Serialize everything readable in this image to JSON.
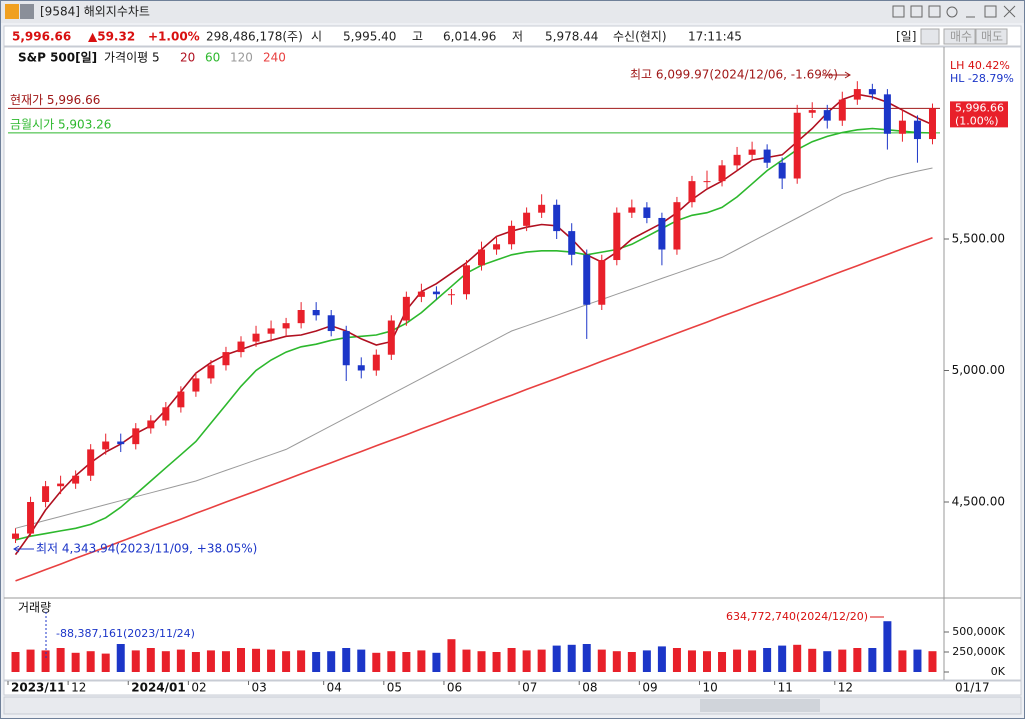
{
  "window": {
    "title": "[9584] 해외지수차트"
  },
  "quote": {
    "price": "5,996.66",
    "change": "▲59.32",
    "change_pct": "+1.00%",
    "volume": "298,486,178(주)",
    "open_label": "시",
    "open": "5,995.40",
    "high_label": "고",
    "high": "6,014.96",
    "low_label": "저",
    "low": "5,978.44",
    "source": "수신(현지)",
    "time": "17:11:45",
    "period": "[일]",
    "buy": "매수",
    "sell": "매도"
  },
  "chart_data": [
    {
      "type": "candlestick",
      "title": "S&P 500[일]",
      "ma_label": "가격이평 5",
      "up_color": "#e8202a",
      "down_color": "#1c36c8",
      "categories": [
        "2023/11",
        null,
        null,
        null,
        "12",
        null,
        null,
        null,
        "2024/01",
        null,
        null,
        null,
        "02",
        null,
        null,
        null,
        "03",
        null,
        null,
        null,
        null,
        "04",
        null,
        null,
        null,
        "05",
        null,
        null,
        null,
        "06",
        null,
        null,
        null,
        null,
        "07",
        null,
        null,
        null,
        "08",
        null,
        null,
        null,
        "09",
        null,
        null,
        null,
        "10",
        null,
        null,
        null,
        null,
        "11",
        null,
        null,
        null,
        "12",
        null,
        null,
        null,
        null,
        null,
        null
      ],
      "candles": [
        [
          4360,
          4400,
          4344,
          4380
        ],
        [
          4380,
          4520,
          4370,
          4500
        ],
        [
          4500,
          4580,
          4480,
          4560
        ],
        [
          4560,
          4600,
          4530,
          4570
        ],
        [
          4570,
          4620,
          4550,
          4600
        ],
        [
          4600,
          4720,
          4580,
          4700
        ],
        [
          4700,
          4760,
          4680,
          4730
        ],
        [
          4730,
          4760,
          4690,
          4720
        ],
        [
          4720,
          4800,
          4700,
          4780
        ],
        [
          4780,
          4830,
          4760,
          4810
        ],
        [
          4810,
          4880,
          4790,
          4860
        ],
        [
          4860,
          4940,
          4840,
          4920
        ],
        [
          4920,
          4990,
          4900,
          4970
        ],
        [
          4970,
          5040,
          4950,
          5020
        ],
        [
          5020,
          5090,
          5000,
          5070
        ],
        [
          5070,
          5130,
          5050,
          5110
        ],
        [
          5110,
          5170,
          5090,
          5140
        ],
        [
          5140,
          5190,
          5110,
          5160
        ],
        [
          5160,
          5200,
          5130,
          5180
        ],
        [
          5180,
          5260,
          5160,
          5230
        ],
        [
          5230,
          5260,
          5190,
          5210
        ],
        [
          5210,
          5230,
          5130,
          5150
        ],
        [
          5150,
          5170,
          4960,
          5020
        ],
        [
          5020,
          5050,
          4970,
          5000
        ],
        [
          5000,
          5080,
          4980,
          5060
        ],
        [
          5060,
          5210,
          5040,
          5190
        ],
        [
          5190,
          5300,
          5170,
          5280
        ],
        [
          5280,
          5330,
          5260,
          5300
        ],
        [
          5300,
          5320,
          5270,
          5290
        ],
        [
          5290,
          5310,
          5250,
          5290
        ],
        [
          5290,
          5420,
          5270,
          5400
        ],
        [
          5400,
          5490,
          5380,
          5460
        ],
        [
          5460,
          5510,
          5440,
          5480
        ],
        [
          5480,
          5570,
          5460,
          5550
        ],
        [
          5550,
          5620,
          5530,
          5600
        ],
        [
          5600,
          5670,
          5580,
          5630
        ],
        [
          5630,
          5650,
          5500,
          5530
        ],
        [
          5530,
          5560,
          5400,
          5440
        ],
        [
          5440,
          5460,
          5120,
          5250
        ],
        [
          5250,
          5440,
          5230,
          5420
        ],
        [
          5420,
          5620,
          5400,
          5600
        ],
        [
          5600,
          5650,
          5580,
          5620
        ],
        [
          5620,
          5640,
          5560,
          5580
        ],
        [
          5580,
          5600,
          5400,
          5460
        ],
        [
          5460,
          5660,
          5440,
          5640
        ],
        [
          5640,
          5740,
          5620,
          5720
        ],
        [
          5720,
          5760,
          5690,
          5720
        ],
        [
          5720,
          5800,
          5700,
          5780
        ],
        [
          5780,
          5850,
          5760,
          5820
        ],
        [
          5820,
          5870,
          5800,
          5840
        ],
        [
          5840,
          5860,
          5770,
          5790
        ],
        [
          5790,
          5810,
          5690,
          5730
        ],
        [
          5730,
          6010,
          5710,
          5980
        ],
        [
          5980,
          6020,
          5960,
          5990
        ],
        [
          5990,
          6010,
          5920,
          5950
        ],
        [
          5950,
          6060,
          5930,
          6030
        ],
        [
          6030,
          6100,
          6010,
          6070
        ],
        [
          6070,
          6090,
          6030,
          6050
        ],
        [
          6050,
          6070,
          5840,
          5900
        ],
        [
          5900,
          5990,
          5870,
          5950
        ],
        [
          5950,
          5970,
          5790,
          5880
        ],
        [
          5880,
          6015,
          5860,
          5997
        ]
      ],
      "series": [
        {
          "name": "20",
          "color": "#b01020",
          "values": [
            4300,
            4380,
            4470,
            4540,
            4600,
            4650,
            4690,
            4720,
            4760,
            4790,
            4850,
            4920,
            4990,
            5030,
            5060,
            5080,
            5100,
            5115,
            5130,
            5135,
            5150,
            5170,
            5150,
            5120,
            5097,
            5110,
            5230,
            5300,
            5330,
            5370,
            5410,
            5460,
            5510,
            5530,
            5545,
            5555,
            5550,
            5500,
            5440,
            5412,
            5450,
            5500,
            5530,
            5560,
            5600,
            5650,
            5690,
            5720,
            5760,
            5800,
            5810,
            5820,
            5870,
            5920,
            5980,
            6030,
            6050,
            6040,
            6020,
            5990,
            5960,
            5935
          ]
        },
        {
          "name": "60",
          "color": "#2db82d",
          "values": [
            4356,
            4370,
            4380,
            4390,
            4400,
            4415,
            4440,
            4480,
            4530,
            4580,
            4630,
            4680,
            4730,
            4800,
            4870,
            4940,
            5000,
            5040,
            5070,
            5090,
            5100,
            5115,
            5125,
            5130,
            5135,
            5150,
            5180,
            5220,
            5270,
            5320,
            5370,
            5400,
            5420,
            5440,
            5450,
            5455,
            5455,
            5450,
            5440,
            5450,
            5460,
            5480,
            5510,
            5540,
            5570,
            5590,
            5600,
            5620,
            5660,
            5710,
            5760,
            5800,
            5840,
            5870,
            5890,
            5905,
            5915,
            5920,
            5915,
            5910,
            5905,
            5903
          ]
        },
        {
          "name": "120",
          "color": "#9a9a9a",
          "values": [
            4400,
            4415,
            4430,
            4445,
            4460,
            4475,
            4490,
            4505,
            4520,
            4535,
            4550,
            4565,
            4580,
            4600,
            4620,
            4640,
            4660,
            4680,
            4700,
            4730,
            4760,
            4790,
            4820,
            4850,
            4880,
            4910,
            4940,
            4970,
            5000,
            5030,
            5060,
            5090,
            5120,
            5150,
            5170,
            5190,
            5210,
            5230,
            5250,
            5270,
            5290,
            5310,
            5330,
            5350,
            5370,
            5390,
            5410,
            5430,
            5460,
            5490,
            5520,
            5550,
            5580,
            5610,
            5640,
            5670,
            5690,
            5710,
            5730,
            5745,
            5758,
            5770
          ]
        },
        {
          "name": "240",
          "color": "#e84040",
          "values": [
            4200,
            4221,
            4243,
            4264,
            4286,
            4307,
            4328,
            4350,
            4371,
            4393,
            4414,
            4435,
            4457,
            4478,
            4500,
            4521,
            4542,
            4564,
            4585,
            4607,
            4628,
            4649,
            4671,
            4692,
            4714,
            4735,
            4756,
            4778,
            4799,
            4821,
            4842,
            4863,
            4885,
            4906,
            4928,
            4949,
            4970,
            4992,
            5013,
            5035,
            5056,
            5077,
            5099,
            5120,
            5142,
            5163,
            5184,
            5206,
            5227,
            5249,
            5270,
            5291,
            5313,
            5334,
            5356,
            5377,
            5398,
            5420,
            5441,
            5463,
            5484,
            5505
          ]
        }
      ],
      "ylim": [
        4135,
        6230
      ],
      "yticks": [
        {
          "value": 4500,
          "label": "4,500.00"
        },
        {
          "value": 5000,
          "label": "5,000.00"
        },
        {
          "value": 5500,
          "label": "5,500.00"
        }
      ],
      "grid": false,
      "lines": [
        {
          "label": "현재가 5,996.66",
          "value": 5996.66,
          "color": "#a01818"
        },
        {
          "label": "금월시가 5,903.26",
          "value": 5903.26,
          "color": "#2db82d"
        }
      ],
      "high_note": "최고 6,099.97(2024/12/06, -1.69%)",
      "low_note": "최저 4,343.94(2023/11/09, +38.05%)",
      "last_price": "5,996.66",
      "last_pct": "(1.00%)",
      "stats": [
        "LH  40.42%",
        "HL -28.79%"
      ],
      "end_date": "01/17"
    },
    {
      "type": "bar",
      "title": "거래량",
      "values": [
        250000,
        280000,
        270000,
        300000,
        240000,
        260000,
        230000,
        350000,
        270000,
        300000,
        260000,
        280000,
        250000,
        270000,
        260000,
        300000,
        290000,
        280000,
        260000,
        270000,
        250000,
        260000,
        300000,
        280000,
        240000,
        260000,
        250000,
        270000,
        240000,
        410000,
        280000,
        260000,
        250000,
        300000,
        270000,
        280000,
        330000,
        340000,
        350000,
        280000,
        260000,
        250000,
        270000,
        320000,
        300000,
        270000,
        260000,
        250000,
        280000,
        270000,
        300000,
        330000,
        340000,
        290000,
        260000,
        280000,
        300000,
        300000,
        634773,
        270000,
        280000,
        260000
      ],
      "ylim": [
        0,
        862500
      ],
      "yticks": [
        {
          "value": 0,
          "label": "0K"
        },
        {
          "value": 250000,
          "label": "250,000K"
        },
        {
          "value": 500000,
          "label": "500,000K"
        }
      ],
      "max_note": "634,772,740(2024/12/20)",
      "min_note": "-88,387,161(2023/11/24)"
    }
  ]
}
